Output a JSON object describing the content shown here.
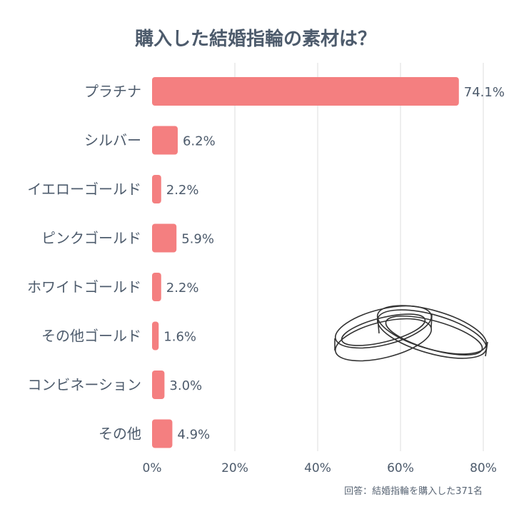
{
  "chart_data": {
    "type": "bar",
    "orientation": "horizontal",
    "title": "購入した結婚指輪の素材は？",
    "categories": [
      "プラチナ",
      "シルバー",
      "イエローゴールド",
      "ピンクゴールド",
      "ホワイトゴールド",
      "その他ゴールド",
      "コンビネーション",
      "その他"
    ],
    "values": [
      74.1,
      6.2,
      2.2,
      5.9,
      2.2,
      1.6,
      3.0,
      4.9
    ],
    "value_labels": [
      "74.1%",
      "6.2%",
      "2.2%",
      "5.9%",
      "2.2%",
      "1.6%",
      "3.0%",
      "4.9%"
    ],
    "xlim": [
      0,
      80
    ],
    "xticks": [
      0,
      20,
      40,
      60,
      80
    ],
    "xtick_labels": [
      "0%",
      "20%",
      "40%",
      "60%",
      "80%"
    ],
    "grid": true,
    "xlabel": "",
    "ylabel": "",
    "note": "回答：結婚指輪を購入した371名",
    "illustration": "wedding-rings-icon",
    "colors": {
      "bar": "#f47f80",
      "text": "#4d5b6c",
      "grid": "#dddddd",
      "note": "#5a6675"
    }
  }
}
